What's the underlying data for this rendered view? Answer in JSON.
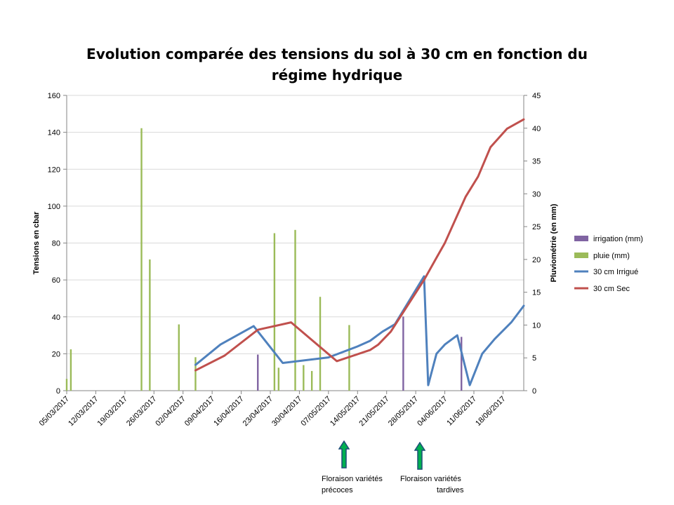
{
  "chart_data": {
    "type": "bar+line",
    "title": "Evolution comparée des tensions du sol à 30 cm en fonction du régime hydrique",
    "ylabel_left": "Tensions en cbar",
    "ylabel_right": "Pluviométrie (en mm)",
    "ylim_left": [
      0,
      160
    ],
    "ylim_right": [
      0,
      45
    ],
    "yticks_left": [
      0,
      20,
      40,
      60,
      80,
      100,
      120,
      140,
      160
    ],
    "yticks_right": [
      0,
      5,
      10,
      15,
      20,
      25,
      30,
      35,
      40,
      45
    ],
    "xlim": [
      "2017-03-05",
      "2017-06-23"
    ],
    "xticks": [
      "05/03/2017",
      "12/03/2017",
      "19/03/2017",
      "26/03/2017",
      "02/04/2017",
      "09/04/2017",
      "16/04/2017",
      "23/04/2017",
      "30/04/2017",
      "07/05/2017",
      "14/05/2017",
      "21/05/2017",
      "28/05/2017",
      "04/06/2017",
      "11/06/2017",
      "18/06/2017"
    ],
    "grid": "horizontal",
    "legend_position": "right",
    "series": [
      {
        "name": "irrigation (mm)",
        "kind": "bar",
        "axis": "right",
        "color": "#8064A2",
        "points": [
          [
            "2017-04-20",
            5.5
          ],
          [
            "2017-05-25",
            11.3
          ],
          [
            "2017-06-08",
            8.2
          ]
        ]
      },
      {
        "name": "pluie (mm)",
        "kind": "bar",
        "axis": "right",
        "color": "#9BBB59",
        "points": [
          [
            "2017-03-05",
            1.8
          ],
          [
            "2017-03-06",
            6.3
          ],
          [
            "2017-03-23",
            40.0
          ],
          [
            "2017-03-25",
            20.0
          ],
          [
            "2017-04-01",
            10.1
          ],
          [
            "2017-04-05",
            5.1
          ],
          [
            "2017-04-24",
            24.0
          ],
          [
            "2017-04-25",
            3.5
          ],
          [
            "2017-04-29",
            24.5
          ],
          [
            "2017-05-01",
            3.9
          ],
          [
            "2017-05-03",
            3.0
          ],
          [
            "2017-05-05",
            14.3
          ],
          [
            "2017-05-12",
            10.0
          ]
        ]
      },
      {
        "name": "30 cm Irrigué",
        "kind": "line",
        "axis": "left",
        "color": "#4F81BD",
        "points": [
          [
            "2017-04-05",
            14
          ],
          [
            "2017-04-11",
            25
          ],
          [
            "2017-04-19",
            35
          ],
          [
            "2017-04-26",
            15
          ],
          [
            "2017-05-07",
            18
          ],
          [
            "2017-05-14",
            24
          ],
          [
            "2017-05-17",
            27
          ],
          [
            "2017-05-20",
            32
          ],
          [
            "2017-05-23",
            36
          ],
          [
            "2017-05-30",
            62
          ],
          [
            "2017-05-31",
            3
          ],
          [
            "2017-06-02",
            20
          ],
          [
            "2017-06-04",
            25
          ],
          [
            "2017-06-07",
            30
          ],
          [
            "2017-06-10",
            3
          ],
          [
            "2017-06-13",
            20
          ],
          [
            "2017-06-16",
            28
          ],
          [
            "2017-06-20",
            37
          ],
          [
            "2017-06-23",
            46
          ]
        ]
      },
      {
        "name": "30 cm Sec",
        "kind": "line",
        "axis": "left",
        "color": "#C0504D",
        "points": [
          [
            "2017-04-05",
            11
          ],
          [
            "2017-04-12",
            19
          ],
          [
            "2017-04-20",
            33
          ],
          [
            "2017-04-28",
            37
          ],
          [
            "2017-05-09",
            16
          ],
          [
            "2017-05-13",
            19
          ],
          [
            "2017-05-17",
            22
          ],
          [
            "2017-05-19",
            25
          ],
          [
            "2017-05-22",
            32
          ],
          [
            "2017-05-30",
            60
          ],
          [
            "2017-06-02",
            72
          ],
          [
            "2017-06-04",
            80
          ],
          [
            "2017-06-07",
            95
          ],
          [
            "2017-06-09",
            105
          ],
          [
            "2017-06-12",
            116
          ],
          [
            "2017-06-15",
            132
          ],
          [
            "2017-06-19",
            142
          ],
          [
            "2017-06-23",
            147
          ]
        ]
      }
    ]
  },
  "annotations": [
    {
      "text_line1": "Floraison variétés",
      "text_line2": "précoces",
      "arrow_date": "2017-05-13",
      "color": "#00B050",
      "outline": "#1F4E79"
    },
    {
      "text_line1": "Floraison variétés",
      "text_line2": "tardives",
      "arrow_date": "2017-05-29",
      "color": "#00B050",
      "outline": "#1F4E79"
    }
  ]
}
